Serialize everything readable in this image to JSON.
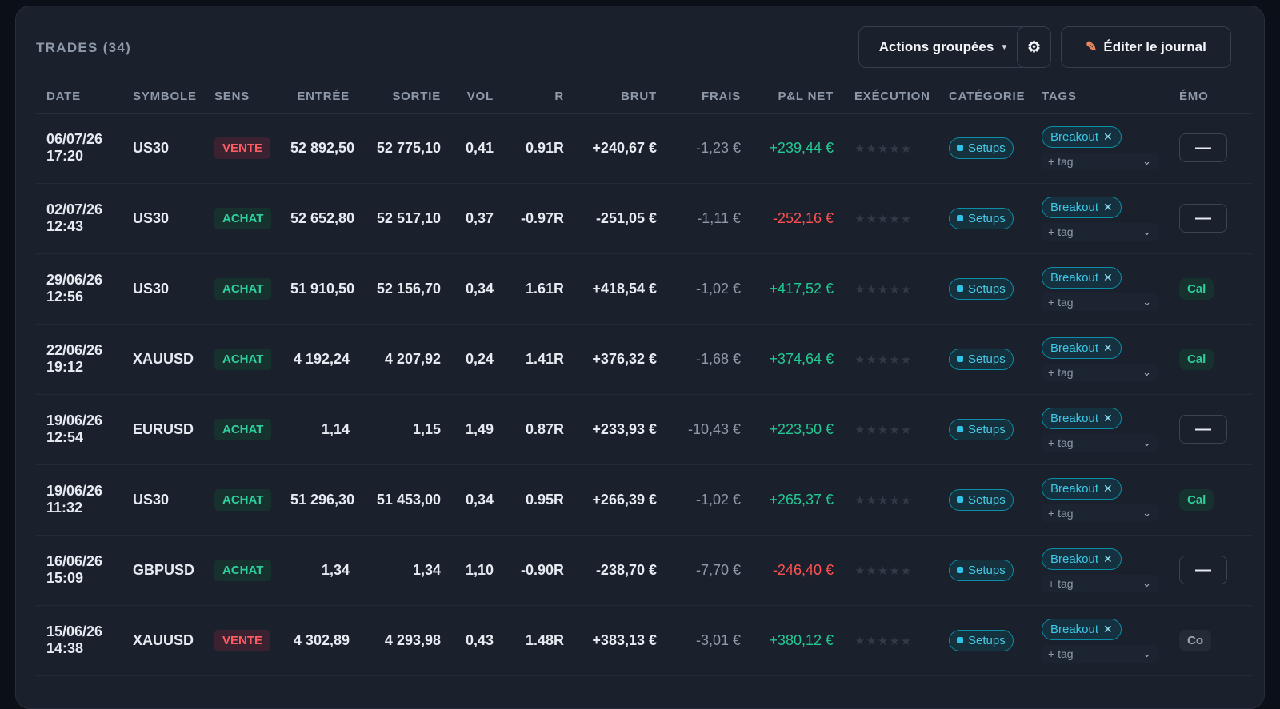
{
  "header": {
    "title": "TRADES (34)",
    "actions_label": "Actions groupées",
    "edit_label": "Éditer le journal"
  },
  "icons": {
    "gear": "gear-icon",
    "pencil": "pencil-icon",
    "caret": "caret-down-icon"
  },
  "columns": [
    "DATE",
    "SYMBOLE",
    "SENS",
    "ENTRÉE",
    "SORTIE",
    "VOL",
    "R",
    "BRUT",
    "FRAIS",
    "P&L NET",
    "EXÉCUTION",
    "CATÉGORIE",
    "TAGS",
    "ÉMO"
  ],
  "tag_placeholder": "+ tag",
  "rows": [
    {
      "date": "06/07/26",
      "time": "17:20",
      "symbol": "US30",
      "side": "VENTE",
      "entry": "52 892,50",
      "exit": "52 775,10",
      "vol": "0,41",
      "r": "0.91R",
      "gross": "+240,67 €",
      "fees": "-1,23 €",
      "net": "+239,44 €",
      "net_sign": "pos",
      "category": "Setups",
      "tag": "Breakout",
      "emotion": "—",
      "emotion_kind": "box"
    },
    {
      "date": "02/07/26",
      "time": "12:43",
      "symbol": "US30",
      "side": "ACHAT",
      "entry": "52 652,80",
      "exit": "52 517,10",
      "vol": "0,37",
      "r": "-0.97R",
      "gross": "-251,05 €",
      "fees": "-1,11 €",
      "net": "-252,16 €",
      "net_sign": "neg",
      "category": "Setups",
      "tag": "Breakout",
      "emotion": "—",
      "emotion_kind": "box"
    },
    {
      "date": "29/06/26",
      "time": "12:56",
      "symbol": "US30",
      "side": "ACHAT",
      "entry": "51 910,50",
      "exit": "52 156,70",
      "vol": "0,34",
      "r": "1.61R",
      "gross": "+418,54 €",
      "fees": "-1,02 €",
      "net": "+417,52 €",
      "net_sign": "pos",
      "category": "Setups",
      "tag": "Breakout",
      "emotion": "Cal",
      "emotion_kind": "pill"
    },
    {
      "date": "22/06/26",
      "time": "19:12",
      "symbol": "XAUUSD",
      "side": "ACHAT",
      "entry": "4 192,24",
      "exit": "4 207,92",
      "vol": "0,24",
      "r": "1.41R",
      "gross": "+376,32 €",
      "fees": "-1,68 €",
      "net": "+374,64 €",
      "net_sign": "pos",
      "category": "Setups",
      "tag": "Breakout",
      "emotion": "Cal",
      "emotion_kind": "pill"
    },
    {
      "date": "19/06/26",
      "time": "12:54",
      "symbol": "EURUSD",
      "side": "ACHAT",
      "entry": "1,14",
      "exit": "1,15",
      "vol": "1,49",
      "r": "0.87R",
      "gross": "+233,93 €",
      "fees": "-10,43 €",
      "net": "+223,50 €",
      "net_sign": "pos",
      "category": "Setups",
      "tag": "Breakout",
      "emotion": "—",
      "emotion_kind": "box"
    },
    {
      "date": "19/06/26",
      "time": "11:32",
      "symbol": "US30",
      "side": "ACHAT",
      "entry": "51 296,30",
      "exit": "51 453,00",
      "vol": "0,34",
      "r": "0.95R",
      "gross": "+266,39 €",
      "fees": "-1,02 €",
      "net": "+265,37 €",
      "net_sign": "pos",
      "category": "Setups",
      "tag": "Breakout",
      "emotion": "Cal",
      "emotion_kind": "pill"
    },
    {
      "date": "16/06/26",
      "time": "15:09",
      "symbol": "GBPUSD",
      "side": "ACHAT",
      "entry": "1,34",
      "exit": "1,34",
      "vol": "1,10",
      "r": "-0.90R",
      "gross": "-238,70 €",
      "fees": "-7,70 €",
      "net": "-246,40 €",
      "net_sign": "neg",
      "category": "Setups",
      "tag": "Breakout",
      "emotion": "—",
      "emotion_kind": "box"
    },
    {
      "date": "15/06/26",
      "time": "14:38",
      "symbol": "XAUUSD",
      "side": "VENTE",
      "entry": "4 302,89",
      "exit": "4 293,98",
      "vol": "0,43",
      "r": "1.48R",
      "gross": "+383,13 €",
      "fees": "-3,01 €",
      "net": "+380,12 €",
      "net_sign": "pos",
      "category": "Setups",
      "tag": "Breakout",
      "emotion": "Co",
      "emotion_kind": "pill-gray"
    }
  ]
}
